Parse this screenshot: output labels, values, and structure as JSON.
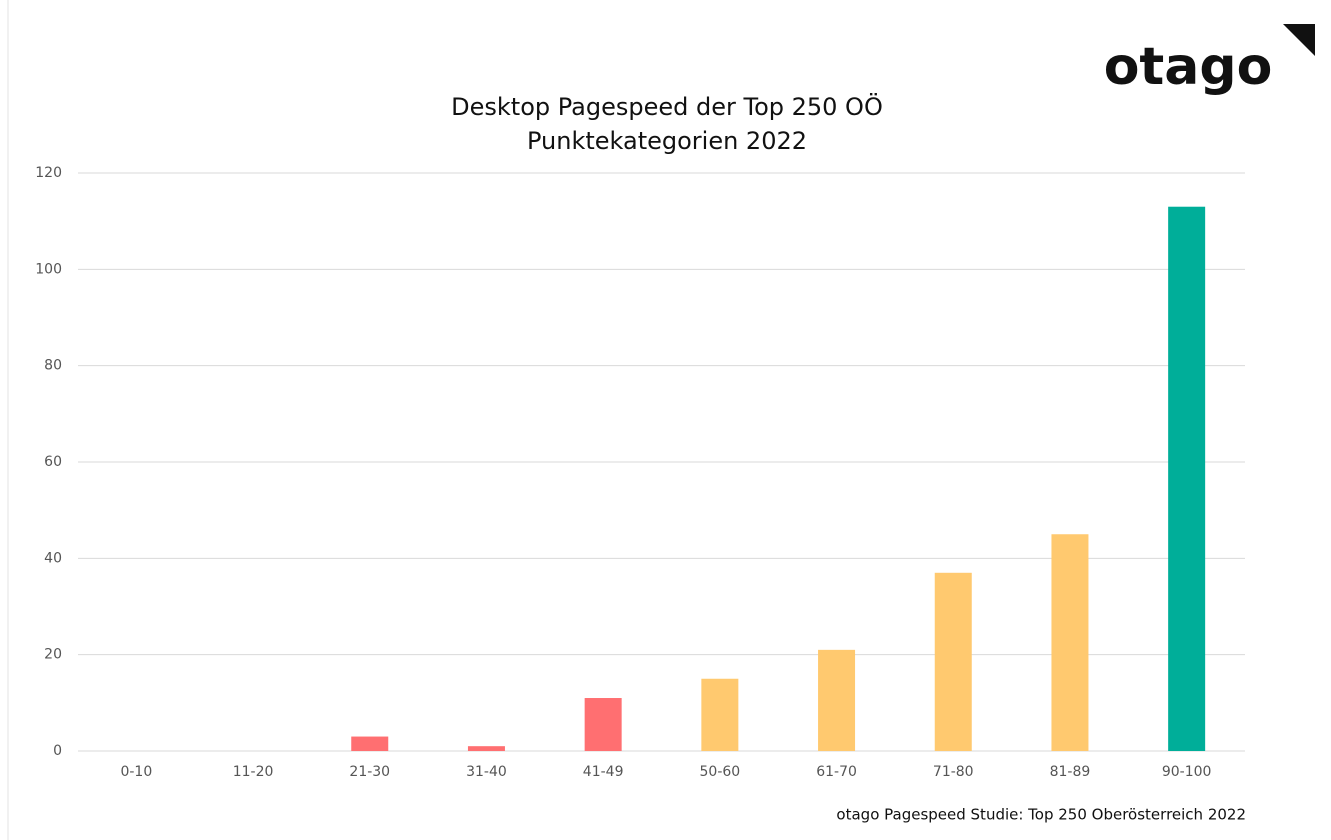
{
  "chart_data": {
    "type": "bar",
    "title": "Desktop Pagespeed der Top 250 OÖ",
    "subtitle": "Punktekategorien 2022",
    "categories": [
      "0-10",
      "11-20",
      "21-30",
      "31-40",
      "41-49",
      "50-60",
      "61-70",
      "71-80",
      "81-89",
      "90-100"
    ],
    "values": [
      0,
      0,
      3,
      1,
      11,
      15,
      21,
      37,
      45,
      113
    ],
    "colors": [
      "#ff6f71",
      "#ff6f71",
      "#ff6f71",
      "#ff6f71",
      "#ff6f71",
      "#ffc96f",
      "#ffc96f",
      "#ffc96f",
      "#ffc96f",
      "#00ae99"
    ],
    "ylim": [
      0,
      120
    ],
    "yticks": [
      0,
      20,
      40,
      60,
      80,
      100,
      120
    ],
    "grid": true,
    "logo": "otago",
    "source": "otago Pagespeed Studie: Top 250 Oberösterreich 2022"
  }
}
